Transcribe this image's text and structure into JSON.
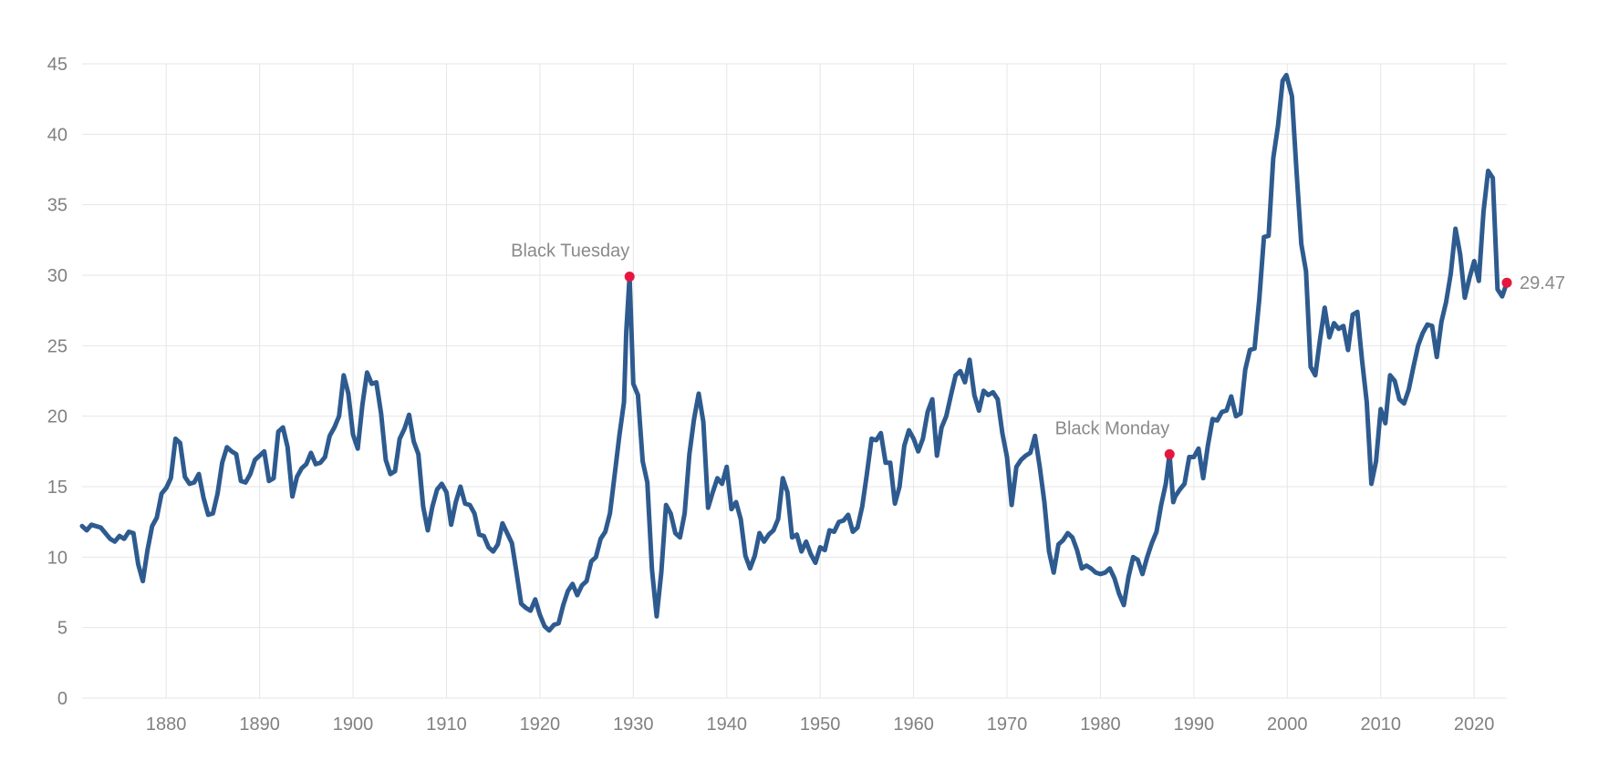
{
  "chart_data": {
    "type": "line",
    "title": "",
    "xlabel": "",
    "ylabel": "",
    "xlim": [
      1871,
      2023.5
    ],
    "ylim": [
      0,
      45
    ],
    "y_ticks": [
      "0",
      "5",
      "10",
      "15",
      "20",
      "25",
      "30",
      "35",
      "40",
      "45"
    ],
    "x_ticks": [
      "1880",
      "1890",
      "1900",
      "1910",
      "1920",
      "1930",
      "1940",
      "1950",
      "1960",
      "1970",
      "1980",
      "1990",
      "2000",
      "2010",
      "2020"
    ],
    "grid": true,
    "colors": {
      "line": "#2e5b8f",
      "marker": "#e5173f",
      "grid": "#e6e6e6",
      "text": "#808080"
    },
    "series": [
      {
        "points": [
          [
            1871,
            12.2
          ],
          [
            1871.5,
            11.9
          ],
          [
            1872,
            12.3
          ],
          [
            1873,
            12.1
          ],
          [
            1874,
            11.3
          ],
          [
            1874.5,
            11.1
          ],
          [
            1875,
            11.5
          ],
          [
            1875.5,
            11.3
          ],
          [
            1876,
            11.8
          ],
          [
            1876.5,
            11.7
          ],
          [
            1877,
            9.5
          ],
          [
            1877.5,
            8.3
          ],
          [
            1878,
            10.5
          ],
          [
            1878.5,
            12.2
          ],
          [
            1879,
            12.8
          ],
          [
            1879.5,
            14.5
          ],
          [
            1880,
            14.9
          ],
          [
            1880.5,
            15.6
          ],
          [
            1881,
            18.4
          ],
          [
            1881.5,
            18.1
          ],
          [
            1882,
            15.7
          ],
          [
            1882.5,
            15.2
          ],
          [
            1883,
            15.3
          ],
          [
            1883.5,
            15.9
          ],
          [
            1884,
            14.2
          ],
          [
            1884.5,
            13.0
          ],
          [
            1885,
            13.1
          ],
          [
            1885.5,
            14.5
          ],
          [
            1886,
            16.7
          ],
          [
            1886.5,
            17.8
          ],
          [
            1887,
            17.5
          ],
          [
            1887.5,
            17.3
          ],
          [
            1888,
            15.4
          ],
          [
            1888.5,
            15.3
          ],
          [
            1889,
            15.9
          ],
          [
            1889.5,
            16.9
          ],
          [
            1890,
            17.2
          ],
          [
            1890.5,
            17.5
          ],
          [
            1891,
            15.4
          ],
          [
            1891.5,
            15.6
          ],
          [
            1892,
            18.9
          ],
          [
            1892.5,
            19.2
          ],
          [
            1893,
            17.8
          ],
          [
            1893.5,
            14.3
          ],
          [
            1894,
            15.7
          ],
          [
            1894.5,
            16.3
          ],
          [
            1895,
            16.6
          ],
          [
            1895.5,
            17.4
          ],
          [
            1896,
            16.6
          ],
          [
            1896.5,
            16.7
          ],
          [
            1897,
            17.1
          ],
          [
            1897.5,
            18.6
          ],
          [
            1898,
            19.2
          ],
          [
            1898.5,
            20.0
          ],
          [
            1899,
            22.9
          ],
          [
            1899.5,
            21.6
          ],
          [
            1900,
            18.7
          ],
          [
            1900.5,
            17.7
          ],
          [
            1901,
            20.8
          ],
          [
            1901.5,
            23.1
          ],
          [
            1902,
            22.3
          ],
          [
            1902.5,
            22.4
          ],
          [
            1903,
            20.2
          ],
          [
            1903.5,
            16.9
          ],
          [
            1904,
            15.9
          ],
          [
            1904.5,
            16.1
          ],
          [
            1905,
            18.4
          ],
          [
            1905.5,
            19.1
          ],
          [
            1906,
            20.1
          ],
          [
            1906.5,
            18.2
          ],
          [
            1907,
            17.3
          ],
          [
            1907.5,
            13.6
          ],
          [
            1908,
            11.9
          ],
          [
            1908.5,
            13.6
          ],
          [
            1909,
            14.8
          ],
          [
            1909.5,
            15.2
          ],
          [
            1910,
            14.6
          ],
          [
            1910.5,
            12.3
          ],
          [
            1911,
            13.9
          ],
          [
            1911.5,
            15.0
          ],
          [
            1912,
            13.8
          ],
          [
            1912.5,
            13.7
          ],
          [
            1913,
            13.1
          ],
          [
            1913.5,
            11.6
          ],
          [
            1914,
            11.5
          ],
          [
            1914.5,
            10.7
          ],
          [
            1915,
            10.4
          ],
          [
            1915.5,
            10.9
          ],
          [
            1916,
            12.4
          ],
          [
            1916.5,
            11.7
          ],
          [
            1917,
            11.0
          ],
          [
            1917.5,
            8.9
          ],
          [
            1918,
            6.7
          ],
          [
            1918.5,
            6.4
          ],
          [
            1919,
            6.2
          ],
          [
            1919.5,
            7.0
          ],
          [
            1920,
            5.9
          ],
          [
            1920.5,
            5.1
          ],
          [
            1921,
            4.8
          ],
          [
            1921.5,
            5.2
          ],
          [
            1922,
            5.3
          ],
          [
            1922.5,
            6.6
          ],
          [
            1923,
            7.6
          ],
          [
            1923.5,
            8.1
          ],
          [
            1924,
            7.3
          ],
          [
            1924.5,
            8.0
          ],
          [
            1925,
            8.3
          ],
          [
            1925.5,
            9.7
          ],
          [
            1926,
            10.0
          ],
          [
            1926.5,
            11.3
          ],
          [
            1927,
            11.8
          ],
          [
            1927.5,
            13.1
          ],
          [
            1928,
            15.8
          ],
          [
            1928.5,
            18.6
          ],
          [
            1929,
            21.0
          ],
          [
            1929.25,
            26.0
          ],
          [
            1929.6,
            29.9
          ],
          [
            1930,
            22.3
          ],
          [
            1930.5,
            21.5
          ],
          [
            1931,
            16.8
          ],
          [
            1931.5,
            15.3
          ],
          [
            1932,
            9.1
          ],
          [
            1932.5,
            5.8
          ],
          [
            1933,
            8.9
          ],
          [
            1933.5,
            13.7
          ],
          [
            1934,
            13.1
          ],
          [
            1934.5,
            11.7
          ],
          [
            1935,
            11.4
          ],
          [
            1935.5,
            13.1
          ],
          [
            1936,
            17.3
          ],
          [
            1936.5,
            19.8
          ],
          [
            1937,
            21.6
          ],
          [
            1937.5,
            19.6
          ],
          [
            1938,
            13.5
          ],
          [
            1938.5,
            14.6
          ],
          [
            1939,
            15.6
          ],
          [
            1939.5,
            15.2
          ],
          [
            1940,
            16.4
          ],
          [
            1940.5,
            13.4
          ],
          [
            1941,
            13.9
          ],
          [
            1941.5,
            12.7
          ],
          [
            1942,
            10.1
          ],
          [
            1942.5,
            9.2
          ],
          [
            1943,
            10.1
          ],
          [
            1943.5,
            11.7
          ],
          [
            1944,
            11.1
          ],
          [
            1944.5,
            11.6
          ],
          [
            1945,
            11.9
          ],
          [
            1945.5,
            12.7
          ],
          [
            1946,
            15.6
          ],
          [
            1946.5,
            14.6
          ],
          [
            1947,
            11.4
          ],
          [
            1947.5,
            11.6
          ],
          [
            1948,
            10.4
          ],
          [
            1948.5,
            11.1
          ],
          [
            1949,
            10.2
          ],
          [
            1949.5,
            9.6
          ],
          [
            1950,
            10.7
          ],
          [
            1950.5,
            10.5
          ],
          [
            1951,
            11.9
          ],
          [
            1951.5,
            11.8
          ],
          [
            1952,
            12.5
          ],
          [
            1952.5,
            12.6
          ],
          [
            1953,
            13.0
          ],
          [
            1953.5,
            11.8
          ],
          [
            1954,
            12.1
          ],
          [
            1954.5,
            13.6
          ],
          [
            1955,
            15.9
          ],
          [
            1955.5,
            18.4
          ],
          [
            1956,
            18.3
          ],
          [
            1956.5,
            18.8
          ],
          [
            1957,
            16.7
          ],
          [
            1957.5,
            16.7
          ],
          [
            1958,
            13.8
          ],
          [
            1958.5,
            15.0
          ],
          [
            1959,
            17.9
          ],
          [
            1959.5,
            19.0
          ],
          [
            1960,
            18.4
          ],
          [
            1960.5,
            17.5
          ],
          [
            1961,
            18.4
          ],
          [
            1961.5,
            20.3
          ],
          [
            1962,
            21.2
          ],
          [
            1962.5,
            17.2
          ],
          [
            1963,
            19.2
          ],
          [
            1963.5,
            20.0
          ],
          [
            1964,
            21.5
          ],
          [
            1964.5,
            22.9
          ],
          [
            1965,
            23.2
          ],
          [
            1965.5,
            22.4
          ],
          [
            1966,
            24.0
          ],
          [
            1966.5,
            21.5
          ],
          [
            1967,
            20.4
          ],
          [
            1967.5,
            21.8
          ],
          [
            1968,
            21.5
          ],
          [
            1968.5,
            21.7
          ],
          [
            1969,
            21.2
          ],
          [
            1969.5,
            18.8
          ],
          [
            1970,
            17.1
          ],
          [
            1970.5,
            13.7
          ],
          [
            1971,
            16.4
          ],
          [
            1971.5,
            16.9
          ],
          [
            1972,
            17.2
          ],
          [
            1972.5,
            17.4
          ],
          [
            1973,
            18.6
          ],
          [
            1973.5,
            16.4
          ],
          [
            1974,
            13.9
          ],
          [
            1974.5,
            10.4
          ],
          [
            1975,
            8.9
          ],
          [
            1975.5,
            10.9
          ],
          [
            1976,
            11.2
          ],
          [
            1976.5,
            11.7
          ],
          [
            1977,
            11.4
          ],
          [
            1977.5,
            10.5
          ],
          [
            1978,
            9.2
          ],
          [
            1978.5,
            9.4
          ],
          [
            1979,
            9.2
          ],
          [
            1979.5,
            8.9
          ],
          [
            1980,
            8.8
          ],
          [
            1980.5,
            8.9
          ],
          [
            1981,
            9.2
          ],
          [
            1981.5,
            8.5
          ],
          [
            1982,
            7.4
          ],
          [
            1982.5,
            6.6
          ],
          [
            1983,
            8.6
          ],
          [
            1983.5,
            10.0
          ],
          [
            1984,
            9.8
          ],
          [
            1984.5,
            8.8
          ],
          [
            1985,
            10.0
          ],
          [
            1985.5,
            11.0
          ],
          [
            1986,
            11.8
          ],
          [
            1986.5,
            13.7
          ],
          [
            1987,
            15.2
          ],
          [
            1987.4,
            17.3
          ],
          [
            1987.8,
            13.9
          ],
          [
            1988,
            14.3
          ],
          [
            1988.5,
            14.8
          ],
          [
            1989,
            15.2
          ],
          [
            1989.5,
            17.1
          ],
          [
            1990,
            17.1
          ],
          [
            1990.5,
            17.7
          ],
          [
            1991,
            15.6
          ],
          [
            1991.5,
            17.9
          ],
          [
            1992,
            19.8
          ],
          [
            1992.5,
            19.7
          ],
          [
            1993,
            20.3
          ],
          [
            1993.5,
            20.4
          ],
          [
            1994,
            21.4
          ],
          [
            1994.5,
            20.0
          ],
          [
            1995,
            20.2
          ],
          [
            1995.5,
            23.3
          ],
          [
            1996,
            24.7
          ],
          [
            1996.5,
            24.8
          ],
          [
            1997,
            28.3
          ],
          [
            1997.5,
            32.7
          ],
          [
            1998,
            32.8
          ],
          [
            1998.5,
            38.3
          ],
          [
            1999,
            40.6
          ],
          [
            1999.5,
            43.8
          ],
          [
            1999.9,
            44.2
          ],
          [
            2000.5,
            42.7
          ],
          [
            2001,
            37.3
          ],
          [
            2001.5,
            32.2
          ],
          [
            2002,
            30.3
          ],
          [
            2002.5,
            23.5
          ],
          [
            2003,
            22.9
          ],
          [
            2003.5,
            25.4
          ],
          [
            2004,
            27.7
          ],
          [
            2004.5,
            25.6
          ],
          [
            2005,
            26.6
          ],
          [
            2005.5,
            26.2
          ],
          [
            2006,
            26.4
          ],
          [
            2006.5,
            24.7
          ],
          [
            2007,
            27.2
          ],
          [
            2007.5,
            27.4
          ],
          [
            2008,
            24.0
          ],
          [
            2008.5,
            21.0
          ],
          [
            2009,
            15.2
          ],
          [
            2009.5,
            16.8
          ],
          [
            2010,
            20.5
          ],
          [
            2010.5,
            19.5
          ],
          [
            2011,
            22.9
          ],
          [
            2011.5,
            22.5
          ],
          [
            2012,
            21.2
          ],
          [
            2012.5,
            20.9
          ],
          [
            2013,
            21.9
          ],
          [
            2013.5,
            23.5
          ],
          [
            2014,
            25.0
          ],
          [
            2014.5,
            25.9
          ],
          [
            2015,
            26.5
          ],
          [
            2015.5,
            26.4
          ],
          [
            2016,
            24.2
          ],
          [
            2016.5,
            26.7
          ],
          [
            2017,
            28.1
          ],
          [
            2017.5,
            30.1
          ],
          [
            2018,
            33.3
          ],
          [
            2018.5,
            31.5
          ],
          [
            2019,
            28.4
          ],
          [
            2019.5,
            29.8
          ],
          [
            2020,
            31.0
          ],
          [
            2020.5,
            29.6
          ],
          [
            2021,
            34.5
          ],
          [
            2021.5,
            37.4
          ],
          [
            2022,
            36.9
          ],
          [
            2022.5,
            29.0
          ],
          [
            2023,
            28.5
          ],
          [
            2023.5,
            29.47
          ]
        ]
      }
    ],
    "markers": [
      {
        "x": 1929.6,
        "y": 29.9,
        "label": "Black Tuesday",
        "label_pos": "above"
      },
      {
        "x": 1987.4,
        "y": 17.3,
        "label": "Black Monday",
        "label_pos": "above-left"
      },
      {
        "x": 2023.5,
        "y": 29.47,
        "label": "29.47",
        "label_pos": "right"
      }
    ]
  }
}
